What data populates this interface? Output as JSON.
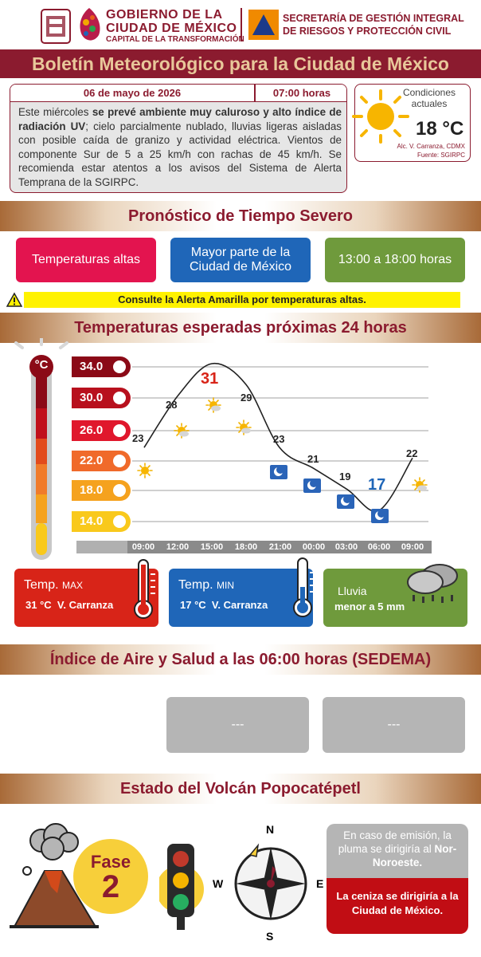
{
  "header": {
    "gov_line1": "GOBIERNO DE LA",
    "gov_line2": "CIUDAD DE MÉXICO",
    "gov_line3": "CAPITAL DE LA TRANSFORMACIÓN",
    "sec_line1": "SECRETARÍA DE GESTIÓN INTEGRAL",
    "sec_line2": "DE RIESGOS Y PROTECCIÓN CIVIL"
  },
  "banner": {
    "title": "Boletín Meteorológico para la Ciudad de México"
  },
  "bulletin": {
    "date": "06 de mayo de 2026",
    "time": "07:00 horas",
    "text_a": "Este miércoles ",
    "text_b": "se prevé ambiente muy caluroso y alto índice de radiación UV",
    "text_c": "; cielo parcialmente nublado, lluvias ligeras aisladas con posible caída de granizo y actividad eléctrica. Vientos de componente Sur de 5 a 25 km/h con rachas de 45 km/h. Se recomienda estar atentos a los avisos del Sistema de Alerta Temprana de la SGIRPC."
  },
  "current": {
    "label": "Condiciones actuales",
    "temp": "18 °C",
    "location": "Alc. V. Carranza, CDMX",
    "source": "Fuente: SGIRPC"
  },
  "severe": {
    "title": "Pronóstico de Tiempo Severo",
    "pill1": "Temperaturas altas",
    "pill2": "Mayor parte de la Ciudad de México",
    "pill3": "13:00 a 18:00 horas",
    "alert": "Consulte la Alerta Amarilla por temperaturas altas."
  },
  "temps": {
    "title": "Temperaturas esperadas próximas 24 horas",
    "unit": "°C",
    "scale": [
      "34.0",
      "30.0",
      "26.0",
      "22.0",
      "18.0",
      "14.0"
    ]
  },
  "chart_data": {
    "type": "line",
    "x": [
      "09:00",
      "12:00",
      "15:00",
      "18:00",
      "21:00",
      "00:00",
      "03:00",
      "06:00",
      "09:00"
    ],
    "labels": [
      "23",
      "28",
      "31",
      "29",
      "23",
      "21",
      "19",
      "17",
      "22"
    ],
    "values": [
      23,
      28,
      31,
      29,
      23,
      21,
      19,
      17,
      22
    ],
    "icons": [
      "sun",
      "sun-cloud",
      "sun-cloud",
      "sun-cloud",
      "moon-cloud",
      "moon-cloud",
      "moon-cloud",
      "moon-cloud",
      "sun-cloud"
    ],
    "ylim": [
      14,
      34
    ]
  },
  "summary": {
    "max_label": "Temp.",
    "max_small": "MAX",
    "max_value": "31 °C  V. Carranza",
    "min_label": "Temp.",
    "min_small": "MIN",
    "min_value": "17 °C  V. Carranza",
    "rain_label": "Lluvia",
    "rain_value": "menor a 5 mm"
  },
  "air": {
    "title": "Índice de Aire y Salud a las 06:00 horas (SEDEMA)",
    "box1": "---",
    "box2": "---"
  },
  "volcano": {
    "title": "Estado del Volcán Popocatépetl",
    "fase_label": "Fase",
    "fase_num": "2",
    "compass_n": "N",
    "compass_s": "S",
    "compass_e": "E",
    "compass_w": "W",
    "emission_text_a": "En caso de emisión, la pluma se dirigiría al ",
    "emission_text_b": "Nor-Noroeste.",
    "ash_text": "La ceniza se dirigiría a la Ciudad de México."
  },
  "colors": {
    "guinda": "#8b1b2f",
    "pink": "#e3144f",
    "blue": "#1f66b8",
    "green": "#6f9a3c",
    "yellow": "#fff200"
  }
}
